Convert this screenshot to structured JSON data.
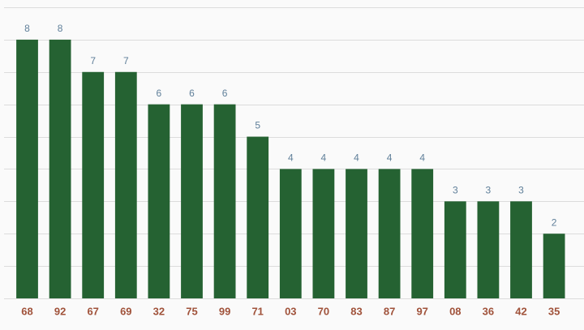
{
  "chart_data": {
    "type": "bar",
    "categories": [
      "68",
      "92",
      "67",
      "69",
      "32",
      "75",
      "99",
      "71",
      "03",
      "70",
      "83",
      "87",
      "97",
      "08",
      "36",
      "42",
      "35"
    ],
    "values": [
      8,
      8,
      7,
      7,
      6,
      6,
      6,
      5,
      4,
      4,
      4,
      4,
      4,
      3,
      3,
      3,
      2
    ],
    "color": "#256232",
    "ylim": [
      0,
      9
    ],
    "yticks": [
      0,
      1,
      2,
      3,
      4,
      5,
      6,
      7,
      8,
      9
    ],
    "grid": true
  }
}
